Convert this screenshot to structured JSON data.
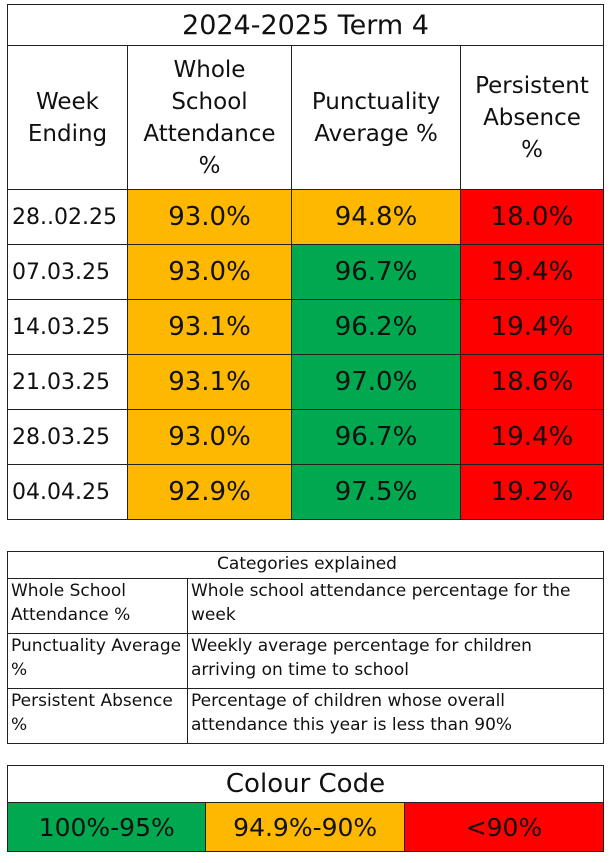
{
  "title": "2024-2025 Term 4",
  "headers": [
    "Week Ending",
    "Whole School Attendance %",
    "Punctuality Average %",
    "Persistent Absence %"
  ],
  "rows": [
    {
      "week": "28..02.25",
      "attendance": "93.0%",
      "punctuality": "94.8%",
      "absence": "18.0%"
    },
    {
      "week": "07.03.25",
      "attendance": "93.0%",
      "punctuality": "96.7%",
      "absence": "19.4%"
    },
    {
      "week": "14.03.25",
      "attendance": "93.1%",
      "punctuality": "96.2%",
      "absence": "19.4%"
    },
    {
      "week": "21.03.25",
      "attendance": "93.1%",
      "punctuality": "97.0%",
      "absence": "18.6%"
    },
    {
      "week": "28.03.25",
      "attendance": "93.0%",
      "punctuality": "96.7%",
      "absence": "19.4%"
    },
    {
      "week": "04.04.25",
      "attendance": "92.9%",
      "punctuality": "97.5%",
      "absence": "19.2%"
    }
  ],
  "categories": {
    "title": "Categories explained",
    "items": [
      {
        "term": "Whole School Attendance %",
        "definition": "Whole school attendance percentage for the week"
      },
      {
        "term": "Punctuality Average %",
        "definition": "Weekly average percentage for children arriving on time to school"
      },
      {
        "term": "Persistent Absence %",
        "definition": "Percentage of children whose overall attendance this year is less than 90%"
      }
    ]
  },
  "colour_code": {
    "title": "Colour Code",
    "bands": [
      {
        "label": "100%-95%",
        "color": "#00a94f"
      },
      {
        "label": "94.9%-90%",
        "color": "#ffb800"
      },
      {
        "label": "<90%",
        "color": "#ff0000"
      }
    ]
  }
}
